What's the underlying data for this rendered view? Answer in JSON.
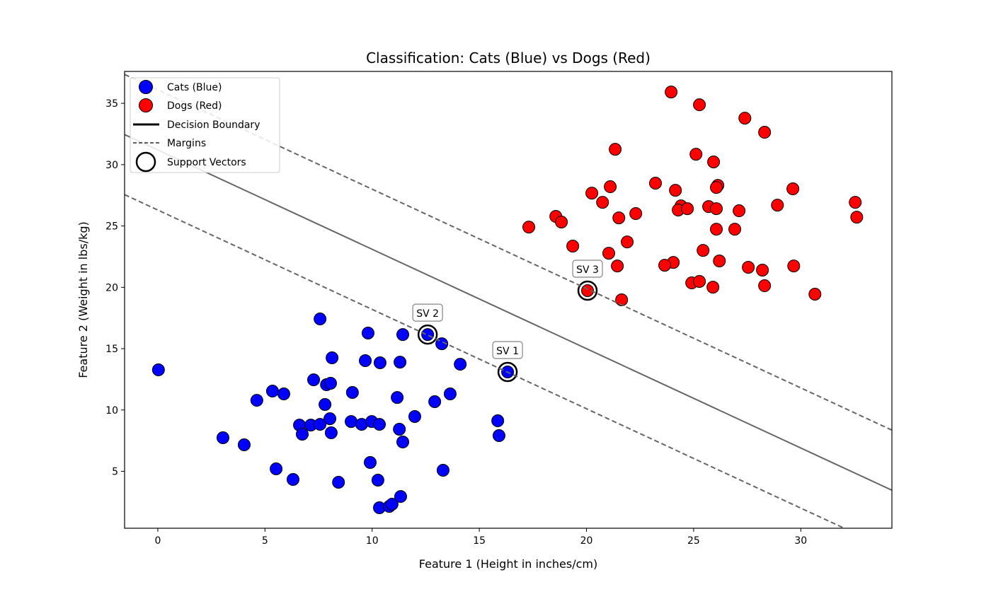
{
  "chart_data": {
    "type": "scatter",
    "title": "Classification: Cats (Blue) vs Dogs (Red)",
    "xlabel": "Feature 1 (Height in inches/cm)",
    "ylabel": "Feature 2 (Weight in lbs/kg)",
    "xlim": [
      -1.55,
      34.25
    ],
    "ylim": [
      0.36,
      37.6
    ],
    "xticks": [
      0,
      5,
      10,
      15,
      20,
      25,
      30
    ],
    "yticks": [
      5,
      10,
      15,
      20,
      25,
      30,
      35
    ],
    "grid": false,
    "legend_placement": "top-left",
    "series": [
      {
        "name": "Cats (Blue)",
        "color": "#0000ff",
        "points": [
          [
            0.03,
            13.27
          ],
          [
            3.04,
            7.74
          ],
          [
            4.03,
            7.16
          ],
          [
            4.62,
            10.79
          ],
          [
            5.35,
            11.54
          ],
          [
            5.88,
            11.31
          ],
          [
            5.52,
            5.2
          ],
          [
            6.31,
            4.34
          ],
          [
            6.61,
            8.77
          ],
          [
            6.74,
            8.03
          ],
          [
            7.14,
            8.77
          ],
          [
            7.57,
            8.83
          ],
          [
            7.27,
            12.46
          ],
          [
            7.57,
            17.42
          ],
          [
            7.8,
            10.45
          ],
          [
            7.87,
            12.06
          ],
          [
            8.06,
            12.18
          ],
          [
            8.03,
            9.29
          ],
          [
            8.09,
            8.14
          ],
          [
            8.13,
            14.25
          ],
          [
            8.43,
            4.11
          ],
          [
            9.08,
            11.43
          ],
          [
            9.02,
            9.06
          ],
          [
            9.51,
            8.83
          ],
          [
            9.68,
            14.02
          ],
          [
            9.81,
            16.27
          ],
          [
            9.98,
            9.06
          ],
          [
            10.34,
            8.83
          ],
          [
            9.91,
            5.72
          ],
          [
            10.37,
            13.85
          ],
          [
            10.27,
            4.28
          ],
          [
            10.34,
            2.03
          ],
          [
            10.8,
            2.14
          ],
          [
            10.93,
            2.32
          ],
          [
            11.33,
            2.95
          ],
          [
            11.17,
            11.02
          ],
          [
            11.27,
            8.43
          ],
          [
            11.3,
            13.9
          ],
          [
            11.43,
            16.15
          ],
          [
            11.43,
            7.39
          ],
          [
            11.99,
            9.47
          ],
          [
            12.59,
            16.15
          ],
          [
            12.92,
            10.68
          ],
          [
            13.25,
            15.4
          ],
          [
            13.31,
            5.09
          ],
          [
            13.64,
            11.31
          ],
          [
            14.11,
            13.73
          ],
          [
            15.86,
            9.12
          ],
          [
            15.92,
            7.91
          ],
          [
            16.32,
            13.1
          ]
        ]
      },
      {
        "name": "Dogs (Red)",
        "color": "#ff0000",
        "points": [
          [
            23.95,
            35.92
          ],
          [
            25.27,
            34.88
          ],
          [
            27.39,
            33.79
          ],
          [
            28.31,
            32.64
          ],
          [
            21.34,
            31.25
          ],
          [
            25.11,
            30.85
          ],
          [
            25.93,
            30.22
          ],
          [
            23.22,
            28.49
          ],
          [
            21.11,
            28.2
          ],
          [
            20.25,
            27.68
          ],
          [
            24.15,
            27.91
          ],
          [
            26.13,
            28.31
          ],
          [
            26.06,
            28.14
          ],
          [
            29.63,
            28.03
          ],
          [
            20.75,
            26.93
          ],
          [
            24.41,
            26.64
          ],
          [
            24.28,
            26.3
          ],
          [
            24.71,
            26.41
          ],
          [
            25.7,
            26.58
          ],
          [
            26.06,
            26.41
          ],
          [
            27.12,
            26.24
          ],
          [
            28.91,
            26.7
          ],
          [
            32.54,
            26.93
          ],
          [
            32.61,
            25.72
          ],
          [
            18.57,
            25.78
          ],
          [
            18.83,
            25.32
          ],
          [
            21.51,
            25.66
          ],
          [
            22.3,
            26.01
          ],
          [
            17.31,
            24.91
          ],
          [
            26.06,
            24.74
          ],
          [
            26.92,
            24.74
          ],
          [
            21.9,
            23.7
          ],
          [
            19.36,
            23.36
          ],
          [
            21.04,
            22.78
          ],
          [
            25.44,
            23.01
          ],
          [
            24.05,
            22.03
          ],
          [
            23.65,
            21.8
          ],
          [
            26.2,
            22.15
          ],
          [
            21.44,
            21.74
          ],
          [
            27.55,
            21.63
          ],
          [
            28.21,
            21.4
          ],
          [
            29.67,
            21.74
          ],
          [
            24.91,
            20.36
          ],
          [
            25.27,
            20.48
          ],
          [
            25.9,
            20.01
          ],
          [
            28.31,
            20.13
          ],
          [
            30.66,
            19.44
          ],
          [
            21.64,
            18.98
          ],
          [
            20.05,
            19.73
          ]
        ]
      }
    ],
    "lines": [
      {
        "name": "Decision Boundary",
        "style": "solid",
        "color": "#666666",
        "intercept": 31.2,
        "slope": -0.81
      },
      {
        "name": "Margins",
        "style": "dashed",
        "color": "#666666",
        "intercept": 36.1,
        "slope": -0.81
      },
      {
        "name": "Margins",
        "style": "dashed",
        "color": "#666666",
        "intercept": 26.3,
        "slope": -0.81
      }
    ],
    "support_vectors": [
      {
        "label": "SV 1",
        "x": 16.32,
        "y": 13.1
      },
      {
        "label": "SV 2",
        "x": 12.59,
        "y": 16.15
      },
      {
        "label": "SV 3",
        "x": 20.05,
        "y": 19.73
      }
    ],
    "legend": [
      "Cats (Blue)",
      "Dogs (Red)",
      "Decision Boundary",
      "Margins",
      "Support Vectors"
    ]
  }
}
